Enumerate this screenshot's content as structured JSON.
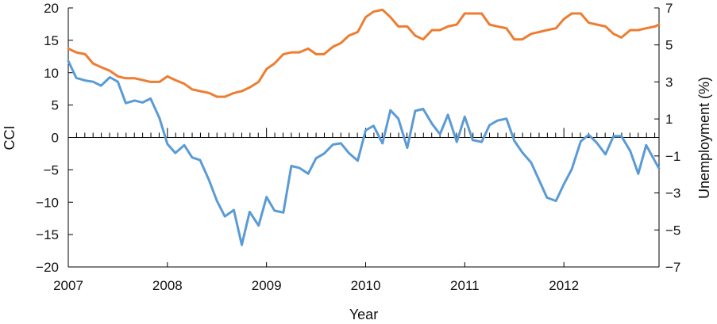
{
  "chart_data": {
    "type": "line",
    "xlabel": "Year",
    "ylabel_left": "CCI",
    "ylabel_right": "Unemployment (%)",
    "x_ticks": [
      "2007",
      "2008",
      "2009",
      "2010",
      "2011",
      "2012"
    ],
    "xlim": [
      2007,
      2012.96
    ],
    "ylim_left": [
      -20,
      20
    ],
    "y_ticks_left": [
      20,
      15,
      10,
      5,
      0,
      -5,
      -10,
      -15,
      -20
    ],
    "ylim_right": [
      -7,
      7
    ],
    "y_ticks_right": [
      7,
      5,
      3,
      1,
      -1,
      -3,
      -5,
      -7
    ],
    "grid": false,
    "legend": "none",
    "series": [
      {
        "axis": "left",
        "color": "#5b9bd5",
        "x": [
          2007.0,
          2007.08,
          2007.17,
          2007.25,
          2007.33,
          2007.42,
          2007.5,
          2007.58,
          2007.67,
          2007.75,
          2007.83,
          2007.92,
          2008.0,
          2008.08,
          2008.17,
          2008.25,
          2008.33,
          2008.42,
          2008.5,
          2008.58,
          2008.67,
          2008.75,
          2008.83,
          2008.92,
          2009.0,
          2009.08,
          2009.17,
          2009.25,
          2009.33,
          2009.42,
          2009.5,
          2009.58,
          2009.67,
          2009.75,
          2009.83,
          2009.92,
          2010.0,
          2010.08,
          2010.17,
          2010.25,
          2010.33,
          2010.42,
          2010.5,
          2010.58,
          2010.67,
          2010.75,
          2010.83,
          2010.92,
          2011.0,
          2011.08,
          2011.17,
          2011.25,
          2011.33,
          2011.42,
          2011.5,
          2011.58,
          2011.67,
          2011.75,
          2011.83,
          2011.92,
          2012.0,
          2012.08,
          2012.17,
          2012.25,
          2012.33,
          2012.42,
          2012.5,
          2012.58,
          2012.67,
          2012.75,
          2012.83,
          2012.92,
          2012.96
        ],
        "values": [
          11.8,
          9.2,
          8.8,
          8.6,
          8.0,
          9.3,
          8.6,
          5.3,
          5.7,
          5.4,
          6.0,
          3.0,
          -1.0,
          -2.4,
          -1.2,
          -3.1,
          -3.5,
          -6.6,
          -9.8,
          -12.2,
          -11.2,
          -16.6,
          -11.5,
          -13.6,
          -9.2,
          -11.3,
          -11.6,
          -4.4,
          -4.7,
          -5.6,
          -3.2,
          -2.5,
          -1.1,
          -0.9,
          -2.4,
          -3.6,
          1.1,
          1.8,
          -0.9,
          4.2,
          2.9,
          -1.6,
          4.1,
          4.4,
          2.1,
          0.5,
          3.5,
          -0.7,
          3.2,
          -0.4,
          -0.7,
          1.9,
          2.6,
          2.9,
          -0.5,
          -2.3,
          -3.9,
          -6.6,
          -9.3,
          -9.8,
          -7.2,
          -4.9,
          -0.6,
          0.4,
          -0.8,
          -2.6,
          0.2,
          0.2,
          -2.1,
          -5.6,
          -1.2,
          -3.7,
          -4.8
        ]
      },
      {
        "axis": "right",
        "color": "#ed7d31",
        "x": [
          2007.0,
          2007.08,
          2007.17,
          2007.25,
          2007.33,
          2007.42,
          2007.5,
          2007.58,
          2007.67,
          2007.75,
          2007.83,
          2007.92,
          2008.0,
          2008.08,
          2008.17,
          2008.25,
          2008.33,
          2008.42,
          2008.5,
          2008.58,
          2008.67,
          2008.75,
          2008.83,
          2008.92,
          2009.0,
          2009.08,
          2009.17,
          2009.25,
          2009.33,
          2009.42,
          2009.5,
          2009.58,
          2009.67,
          2009.75,
          2009.83,
          2009.92,
          2010.0,
          2010.08,
          2010.17,
          2010.25,
          2010.33,
          2010.42,
          2010.5,
          2010.58,
          2010.67,
          2010.75,
          2010.83,
          2010.92,
          2011.0,
          2011.08,
          2011.17,
          2011.25,
          2011.33,
          2011.42,
          2011.5,
          2011.58,
          2011.67,
          2011.75,
          2011.83,
          2011.92,
          2012.0,
          2012.08,
          2012.17,
          2012.25,
          2012.33,
          2012.42,
          2012.5,
          2012.58,
          2012.67,
          2012.75,
          2012.83,
          2012.92,
          2012.96
        ],
        "values": [
          4.8,
          4.6,
          4.5,
          4.0,
          3.8,
          3.6,
          3.3,
          3.2,
          3.2,
          3.1,
          3.0,
          3.0,
          3.3,
          3.1,
          2.9,
          2.6,
          2.5,
          2.4,
          2.2,
          2.2,
          2.4,
          2.5,
          2.7,
          3.0,
          3.7,
          4.0,
          4.5,
          4.6,
          4.6,
          4.8,
          4.5,
          4.5,
          4.9,
          5.1,
          5.5,
          5.7,
          6.5,
          6.8,
          6.9,
          6.5,
          6.0,
          6.0,
          5.5,
          5.3,
          5.8,
          5.8,
          6.0,
          6.1,
          6.7,
          6.7,
          6.7,
          6.1,
          6.0,
          5.9,
          5.3,
          5.3,
          5.6,
          5.7,
          5.8,
          5.9,
          6.4,
          6.7,
          6.7,
          6.2,
          6.1,
          6.0,
          5.6,
          5.4,
          5.8,
          5.8,
          5.9,
          6.0,
          6.1
        ]
      }
    ]
  }
}
